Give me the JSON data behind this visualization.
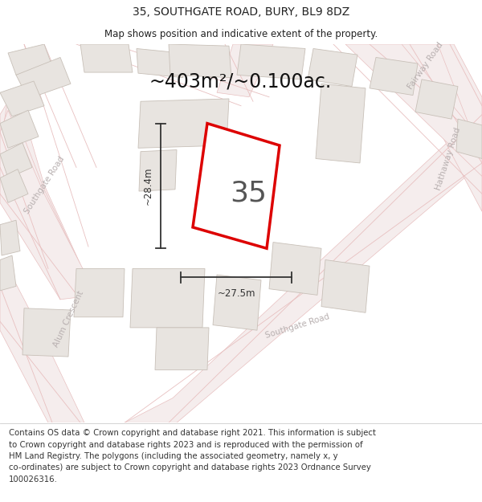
{
  "title": "35, SOUTHGATE ROAD, BURY, BL9 8DZ",
  "subtitle": "Map shows position and indicative extent of the property.",
  "area_label": "~403m²/~0.100ac.",
  "property_number": "35",
  "dim_width": "~27.5m",
  "dim_height": "~28.4m",
  "footer": "Contains OS data © Crown copyright and database right 2021. This information is subject\nto Crown copyright and database rights 2023 and is reproduced with the permission of\nHM Land Registry. The polygons (including the associated geometry, namely x, y\nco-ordinates) are subject to Crown copyright and database rights 2023 Ordnance Survey\n100026316.",
  "map_bg": "#f8f6f6",
  "footer_bg": "#ffffff",
  "road_fill": "#f5eded",
  "road_outline": "#e8c0c0",
  "road_center_line": "#f0d0d0",
  "building_fill": "#e8e4e0",
  "building_edge": "#c8c0b8",
  "property_fill": "#ffffff",
  "property_edge": "#dd0000",
  "dim_color": "#333333",
  "road_label_color": "#b8b0b0",
  "title_color": "#222222",
  "footer_color": "#333333",
  "footer_fontsize": 7.3,
  "title_fontsize": 10,
  "subtitle_fontsize": 8.5,
  "area_fontsize": 17,
  "property_num_fontsize": 26,
  "road_label_fontsize": 7.5,
  "dim_fontsize": 8.5
}
